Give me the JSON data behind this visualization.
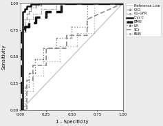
{
  "xlabel": "1 - Specificity",
  "ylabel": "Sensitivity",
  "xlim": [
    0.0,
    1.0
  ],
  "ylim": [
    0.0,
    1.0
  ],
  "xticks": [
    0.0,
    0.25,
    0.5,
    0.75,
    1.0
  ],
  "yticks": [
    0.0,
    0.25,
    0.5,
    0.75,
    1.0
  ],
  "curves": [
    {
      "name": "CrCl",
      "fpr": [
        0.0,
        0.02,
        0.02,
        0.04,
        0.04,
        0.06,
        0.06,
        0.08,
        0.08,
        0.1,
        0.1,
        0.15,
        0.15,
        0.2,
        0.2,
        1.0
      ],
      "tpr": [
        0.0,
        0.0,
        0.8,
        0.8,
        0.85,
        0.85,
        0.9,
        0.9,
        0.93,
        0.93,
        0.96,
        0.96,
        0.98,
        0.98,
        1.0,
        1.0
      ]
    },
    {
      "name": "CG-GFR",
      "fpr": [
        0.0,
        0.02,
        0.02,
        0.05,
        0.05,
        0.08,
        0.08,
        0.12,
        0.12,
        0.2,
        0.2,
        0.35,
        0.35,
        1.0
      ],
      "tpr": [
        0.0,
        0.0,
        0.73,
        0.73,
        0.8,
        0.8,
        0.85,
        0.85,
        0.9,
        0.9,
        0.95,
        0.95,
        1.0,
        1.0
      ]
    },
    {
      "name": "Cys C",
      "fpr": [
        0.0,
        0.02,
        0.02,
        0.04,
        0.04,
        0.06,
        0.06,
        0.1,
        0.1,
        0.18,
        0.18,
        1.0
      ],
      "tpr": [
        0.0,
        0.0,
        0.92,
        0.92,
        0.95,
        0.95,
        0.97,
        0.97,
        0.99,
        0.99,
        1.0,
        1.0
      ]
    },
    {
      "name": "BMG",
      "fpr": [
        0.0,
        0.0,
        0.0,
        0.04,
        0.04,
        0.08,
        0.08,
        0.15,
        0.15,
        0.25,
        0.25,
        0.4,
        0.4,
        1.0
      ],
      "tpr": [
        0.0,
        0.0,
        0.75,
        0.75,
        0.78,
        0.78,
        0.82,
        0.82,
        0.87,
        0.87,
        0.92,
        0.92,
        1.0,
        1.0
      ]
    },
    {
      "name": "UA",
      "fpr": [
        0.0,
        0.04,
        0.04,
        0.08,
        0.08,
        0.14,
        0.14,
        0.22,
        0.22,
        0.35,
        0.35,
        0.5,
        0.5,
        0.65,
        0.65,
        1.0
      ],
      "tpr": [
        0.0,
        0.0,
        0.22,
        0.22,
        0.35,
        0.35,
        0.48,
        0.48,
        0.58,
        0.58,
        0.68,
        0.68,
        0.78,
        0.78,
        1.0,
        1.0
      ]
    },
    {
      "name": "SCr",
      "fpr": [
        0.0,
        0.06,
        0.06,
        0.12,
        0.12,
        0.25,
        0.25,
        0.45,
        0.45,
        0.65,
        0.65,
        1.0
      ],
      "tpr": [
        0.0,
        0.0,
        0.28,
        0.28,
        0.42,
        0.42,
        0.58,
        0.58,
        0.7,
        0.7,
        0.85,
        1.0
      ]
    },
    {
      "name": "BUN",
      "fpr": [
        0.0,
        0.06,
        0.06,
        0.12,
        0.12,
        0.22,
        0.22,
        0.38,
        0.38,
        0.55,
        0.55,
        0.72,
        0.72,
        1.0
      ],
      "tpr": [
        0.0,
        0.0,
        0.18,
        0.18,
        0.32,
        0.32,
        0.46,
        0.46,
        0.6,
        0.6,
        0.72,
        0.72,
        1.0,
        1.0
      ]
    }
  ],
  "curve_styles": [
    {
      "color": "#888888",
      "lw": 0.9,
      "ls": "--",
      "marker": "o",
      "ms": 1.5
    },
    {
      "color": "#aaaaaa",
      "lw": 0.9,
      "ls": "--",
      "marker": "o",
      "ms": 1.5
    },
    {
      "color": "#111111",
      "lw": 1.8,
      "ls": "-",
      "marker": "o",
      "ms": 0
    },
    {
      "color": "#111111",
      "lw": 2.5,
      "ls": "--",
      "marker": "o",
      "ms": 0
    },
    {
      "color": "#555555",
      "lw": 0.9,
      "ls": ":",
      "marker": "o",
      "ms": 1.5
    },
    {
      "color": "#777777",
      "lw": 1.2,
      "ls": "--",
      "marker": "o",
      "ms": 0
    },
    {
      "color": "#888888",
      "lw": 0.9,
      "ls": ":",
      "marker": "o",
      "ms": 1.5
    }
  ],
  "legend_entries": [
    {
      "name": "Reference Line",
      "color": "#aaaaaa",
      "lw": 0.8,
      "ls": "-",
      "marker": "none"
    },
    {
      "name": "CrCl",
      "color": "#888888",
      "lw": 0.9,
      "ls": "--",
      "marker": "o",
      "ms": 2.5
    },
    {
      "name": "CG-GFR",
      "color": "#aaaaaa",
      "lw": 0.9,
      "ls": "--",
      "marker": "o",
      "ms": 2.5
    },
    {
      "name": "Cys C",
      "color": "#111111",
      "lw": 1.8,
      "ls": "-",
      "marker": "none"
    },
    {
      "name": "BMG",
      "color": "#111111",
      "lw": 2.5,
      "ls": "--",
      "marker": "none"
    },
    {
      "name": "UA",
      "color": "#555555",
      "lw": 0.9,
      "ls": ":",
      "marker": "o",
      "ms": 2.5
    },
    {
      "name": "SCr",
      "color": "#777777",
      "lw": 1.2,
      "ls": "--",
      "marker": "none"
    },
    {
      "name": "BUN",
      "color": "#888888",
      "lw": 0.9,
      "ls": ":",
      "marker": "o",
      "ms": 2.5
    }
  ],
  "bg_color": "#ebebeb",
  "plot_bg_color": "#ffffff",
  "ref_color": "#bbbbbb"
}
